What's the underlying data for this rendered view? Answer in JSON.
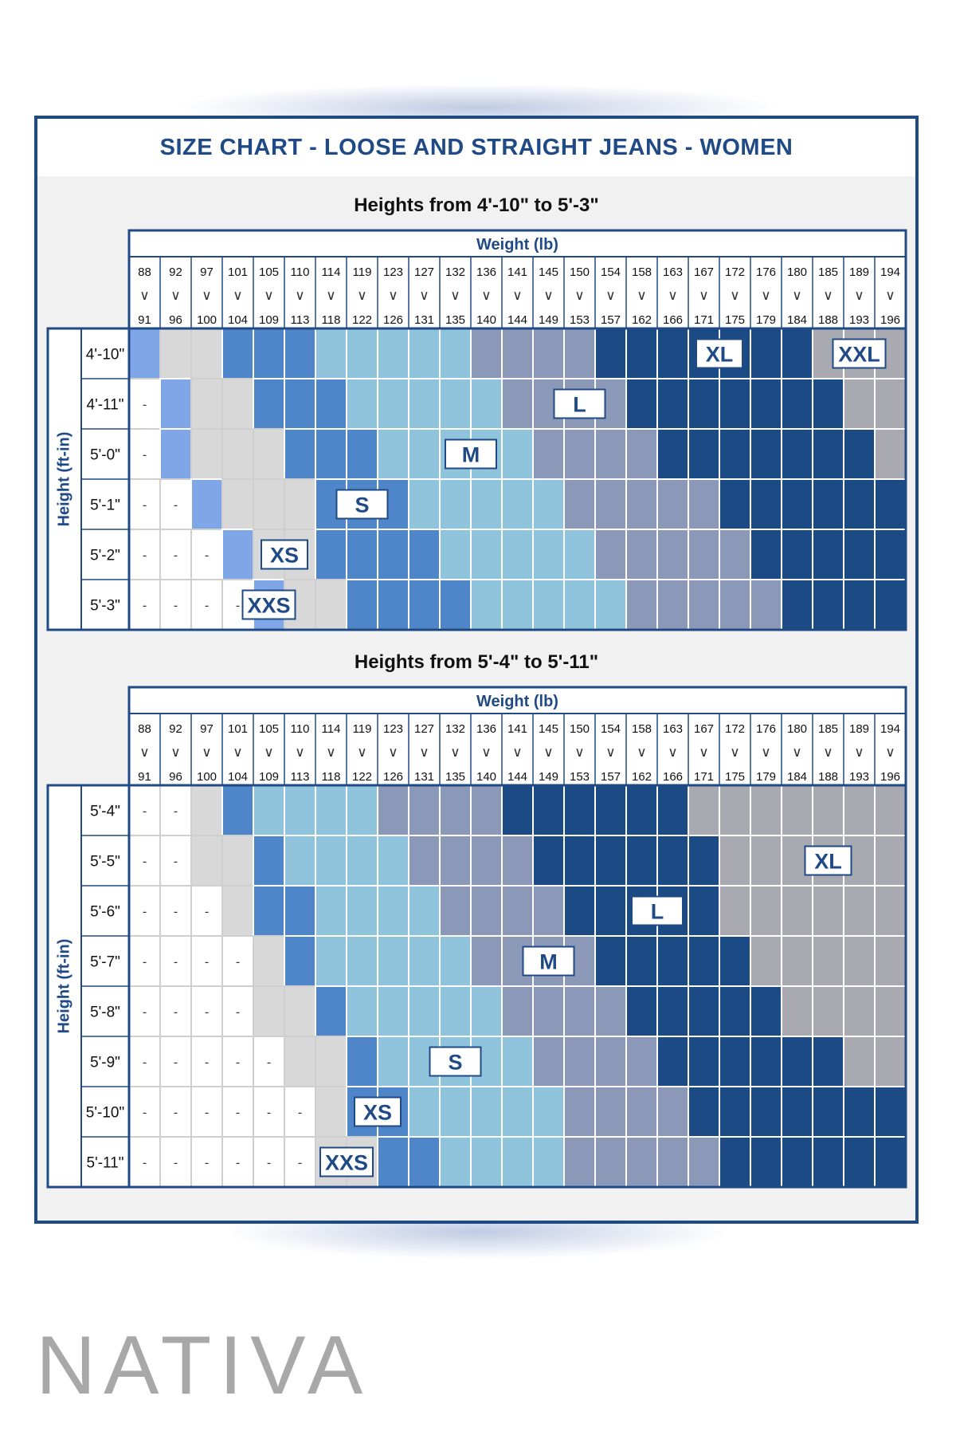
{
  "title": "SIZE CHART - LOOSE AND STRAIGHT JEANS - WOMEN",
  "weight_header": "Weight (lb)",
  "height_axis_label": "Height (ft-in)",
  "range_symbol": "∨",
  "empty_mark": "-",
  "brand": "NATIVA",
  "colors": {
    "XXS": "#7fa6e6",
    "XS": "#4f86c9",
    "S": "#90c4dc",
    "M": "#8c98b8",
    "L": "#1c4a85",
    "XL": "#a9aab1",
    "XXL": "#a9aab1",
    "light": "#d8d8d8",
    "empty": "#ffffff",
    "border": "#1f4a85"
  },
  "chart_data": {
    "type": "table",
    "title": "SIZE CHART - LOOSE AND STRAIGHT JEANS - WOMEN",
    "xlabel": "Weight (lb)",
    "ylabel": "Height (ft-in)",
    "weight_ranges": [
      [
        "88",
        "91"
      ],
      [
        "92",
        "96"
      ],
      [
        "97",
        "100"
      ],
      [
        "101",
        "104"
      ],
      [
        "105",
        "109"
      ],
      [
        "110",
        "113"
      ],
      [
        "114",
        "118"
      ],
      [
        "119",
        "122"
      ],
      [
        "123",
        "126"
      ],
      [
        "127",
        "131"
      ],
      [
        "132",
        "135"
      ],
      [
        "136",
        "140"
      ],
      [
        "141",
        "144"
      ],
      [
        "145",
        "149"
      ],
      [
        "150",
        "153"
      ],
      [
        "154",
        "157"
      ],
      [
        "158",
        "162"
      ],
      [
        "163",
        "166"
      ],
      [
        "167",
        "171"
      ],
      [
        "172",
        "175"
      ],
      [
        "176",
        "179"
      ],
      [
        "180",
        "184"
      ],
      [
        "185",
        "188"
      ],
      [
        "189",
        "193"
      ],
      [
        "194",
        "196"
      ]
    ],
    "tables": [
      {
        "heading": "Heights from 4'-10\" to 5'-3\"",
        "heights": [
          "4'-10\"",
          "4'-11\"",
          "5'-0\"",
          "5'-1\"",
          "5'-2\"",
          "5'-3\""
        ],
        "cells": [
          [
            "XXS",
            "light",
            "light",
            "XS",
            "XS",
            "XS",
            "S",
            "S",
            "S",
            "S",
            "S",
            "M",
            "M",
            "M",
            "M",
            "L",
            "L",
            "L",
            "L",
            "L",
            "L",
            "L",
            "XXL",
            "XXL",
            "XXL"
          ],
          [
            "-",
            "XXS",
            "light",
            "light",
            "XS",
            "XS",
            "XS",
            "S",
            "S",
            "S",
            "S",
            "S",
            "M",
            "M",
            "M",
            "M",
            "L",
            "L",
            "L",
            "L",
            "L",
            "L",
            "L",
            "XXL",
            "XXL"
          ],
          [
            "-",
            "XXS",
            "light",
            "light",
            "light",
            "XS",
            "XS",
            "XS",
            "S",
            "S",
            "S",
            "S",
            "S",
            "M",
            "M",
            "M",
            "M",
            "L",
            "L",
            "L",
            "L",
            "L",
            "L",
            "L",
            "XXL"
          ],
          [
            "-",
            "-",
            "XXS",
            "light",
            "light",
            "light",
            "XS",
            "XS",
            "XS",
            "S",
            "S",
            "S",
            "S",
            "S",
            "M",
            "M",
            "M",
            "M",
            "M",
            "L",
            "L",
            "L",
            "L",
            "L",
            "L"
          ],
          [
            "-",
            "-",
            "-",
            "XXS",
            "light",
            "light",
            "XS",
            "XS",
            "XS",
            "XS",
            "S",
            "S",
            "S",
            "S",
            "S",
            "M",
            "M",
            "M",
            "M",
            "M",
            "L",
            "L",
            "L",
            "L",
            "L"
          ],
          [
            "-",
            "-",
            "-",
            "-",
            "XXS",
            "light",
            "light",
            "XS",
            "XS",
            "XS",
            "XS",
            "S",
            "S",
            "S",
            "S",
            "S",
            "M",
            "M",
            "M",
            "M",
            "M",
            "L",
            "L",
            "L",
            "L"
          ]
        ],
        "labels": [
          {
            "size": "XXL",
            "row": 0,
            "col": 23
          },
          {
            "size": "XL",
            "row": 0,
            "col": 18.5
          },
          {
            "size": "L",
            "row": 1,
            "col": 14
          },
          {
            "size": "M",
            "row": 2,
            "col": 10.5
          },
          {
            "size": "S",
            "row": 3,
            "col": 7
          },
          {
            "size": "XS",
            "row": 4,
            "col": 4.5
          },
          {
            "size": "XXS",
            "row": 5,
            "col": 4
          }
        ]
      },
      {
        "heading": "Heights from 5'-4\" to 5'-11\"",
        "heights": [
          "5'-4\"",
          "5'-5\"",
          "5'-6\"",
          "5'-7\"",
          "5'-8\"",
          "5'-9\"",
          "5'-10\"",
          "5'-11\""
        ],
        "cells": [
          [
            "-",
            "-",
            "light",
            "XS",
            "S",
            "S",
            "S",
            "S",
            "M",
            "M",
            "M",
            "M",
            "L",
            "L",
            "L",
            "L",
            "L",
            "L",
            "XL",
            "XL",
            "XL",
            "XL",
            "XL",
            "XL",
            "XL"
          ],
          [
            "-",
            "-",
            "light",
            "light",
            "XS",
            "S",
            "S",
            "S",
            "S",
            "M",
            "M",
            "M",
            "M",
            "L",
            "L",
            "L",
            "L",
            "L",
            "L",
            "XL",
            "XL",
            "XL",
            "XL",
            "XL",
            "XL"
          ],
          [
            "-",
            "-",
            "-",
            "light",
            "XS",
            "XS",
            "S",
            "S",
            "S",
            "S",
            "M",
            "M",
            "M",
            "M",
            "L",
            "L",
            "L",
            "L",
            "L",
            "XL",
            "XL",
            "XL",
            "XL",
            "XL",
            "XL"
          ],
          [
            "-",
            "-",
            "-",
            "-",
            "light",
            "XS",
            "S",
            "S",
            "S",
            "S",
            "S",
            "M",
            "M",
            "M",
            "M",
            "L",
            "L",
            "L",
            "L",
            "L",
            "XL",
            "XL",
            "XL",
            "XL",
            "XL"
          ],
          [
            "-",
            "-",
            "-",
            "-",
            "light",
            "light",
            "XS",
            "S",
            "S",
            "S",
            "S",
            "S",
            "M",
            "M",
            "M",
            "M",
            "L",
            "L",
            "L",
            "L",
            "L",
            "XL",
            "XL",
            "XL",
            "XL"
          ],
          [
            "-",
            "-",
            "-",
            "-",
            "-",
            "light",
            "light",
            "XS",
            "S",
            "S",
            "S",
            "S",
            "S",
            "M",
            "M",
            "M",
            "M",
            "L",
            "L",
            "L",
            "L",
            "L",
            "L",
            "XL",
            "XL"
          ],
          [
            "-",
            "-",
            "-",
            "-",
            "-",
            "-",
            "light",
            "XS",
            "XS",
            "S",
            "S",
            "S",
            "S",
            "S",
            "M",
            "M",
            "M",
            "M",
            "L",
            "L",
            "L",
            "L",
            "L",
            "L",
            "L"
          ],
          [
            "-",
            "-",
            "-",
            "-",
            "-",
            "-",
            "light",
            "light",
            "XS",
            "XS",
            "S",
            "S",
            "S",
            "S",
            "M",
            "M",
            "M",
            "M",
            "M",
            "L",
            "L",
            "L",
            "L",
            "L",
            "L"
          ]
        ],
        "labels": [
          {
            "size": "XL",
            "row": 1,
            "col": 22
          },
          {
            "size": "L",
            "row": 2,
            "col": 16.5
          },
          {
            "size": "M",
            "row": 3,
            "col": 13
          },
          {
            "size": "S",
            "row": 5,
            "col": 10
          },
          {
            "size": "XS",
            "row": 6,
            "col": 7.5
          },
          {
            "size": "XXS",
            "row": 7,
            "col": 6.5
          }
        ]
      }
    ]
  }
}
